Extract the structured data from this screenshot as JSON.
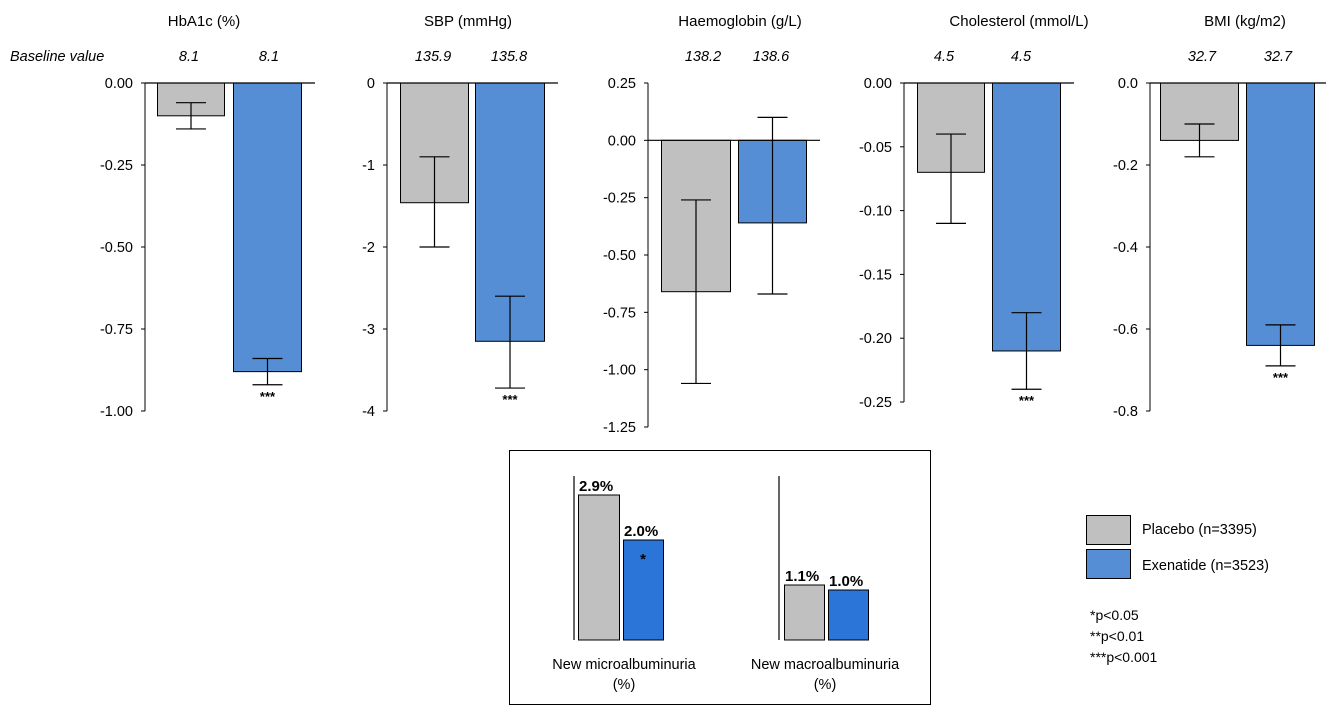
{
  "colors": {
    "placebo": "#c0c0c0",
    "exenatide_panels": "#558ed5",
    "exenatide_inset": "#2c75d8",
    "axis": "#000000"
  },
  "baseline_label": "Baseline value",
  "chart_data": [
    {
      "type": "bar",
      "title": "HbA1c (%)",
      "baseline": [
        "8.1",
        "8.1"
      ],
      "ylim": [
        -1.0,
        0.0
      ],
      "ticks": [
        0.0,
        -0.25,
        -0.5,
        -0.75,
        -1.0
      ],
      "tick_labels": [
        "0.00",
        "-0.25",
        "-0.50",
        "-0.75",
        "-1.00"
      ],
      "series": [
        {
          "name": "Placebo (n=3395)",
          "value": -0.1,
          "err_low": -0.14,
          "err_high": -0.06,
          "sig": ""
        },
        {
          "name": "Exenatide (n=3523)",
          "value": -0.88,
          "err_low": -0.92,
          "err_high": -0.84,
          "sig": "***"
        }
      ]
    },
    {
      "type": "bar",
      "title": "SBP (mmHg)",
      "baseline": [
        "135.9",
        "135.8"
      ],
      "ylim": [
        -4,
        0
      ],
      "ticks": [
        0,
        -1,
        -2,
        -3,
        -4
      ],
      "tick_labels": [
        "0",
        "-1",
        "-2",
        "-3",
        "-4"
      ],
      "series": [
        {
          "name": "Placebo (n=3395)",
          "value": -1.46,
          "err_low": -2.0,
          "err_high": -0.9,
          "sig": ""
        },
        {
          "name": "Exenatide (n=3523)",
          "value": -3.15,
          "err_low": -3.72,
          "err_high": -2.6,
          "sig": "***"
        }
      ]
    },
    {
      "type": "bar",
      "title": "Haemoglobin (g/L)",
      "baseline": [
        "138.2",
        "138.6"
      ],
      "ylim": [
        -1.25,
        0.25
      ],
      "ticks": [
        0.25,
        0.0,
        -0.25,
        -0.5,
        -0.75,
        -1.0,
        -1.25
      ],
      "tick_labels": [
        "0.25",
        "0.00",
        "-0.25",
        "-0.50",
        "-0.75",
        "-1.00",
        "-1.25"
      ],
      "series": [
        {
          "name": "Placebo (n=3395)",
          "value": -0.66,
          "err_low": -1.06,
          "err_high": -0.26,
          "sig": ""
        },
        {
          "name": "Exenatide (n=3523)",
          "value": -0.36,
          "err_low": -0.67,
          "err_high": 0.1,
          "sig": ""
        }
      ]
    },
    {
      "type": "bar",
      "title": "Cholesterol (mmol/L)",
      "baseline": [
        "4.5",
        "4.5"
      ],
      "ylim": [
        -0.25,
        0.0
      ],
      "ticks": [
        0.0,
        -0.05,
        -0.1,
        -0.15,
        -0.2,
        -0.25
      ],
      "tick_labels": [
        "0.00",
        "-0.05",
        "-0.10",
        "-0.15",
        "-0.20",
        "-0.25"
      ],
      "series": [
        {
          "name": "Placebo (n=3395)",
          "value": -0.07,
          "err_low": -0.11,
          "err_high": -0.04,
          "sig": ""
        },
        {
          "name": "Exenatide (n=3523)",
          "value": -0.21,
          "err_low": -0.24,
          "err_high": -0.18,
          "sig": "***"
        }
      ]
    },
    {
      "type": "bar",
      "title": "BMI (kg/m2)",
      "baseline": [
        "32.7",
        "32.7"
      ],
      "ylim": [
        -0.8,
        0.0
      ],
      "ticks": [
        0.0,
        -0.2,
        -0.4,
        -0.6,
        -0.8
      ],
      "tick_labels": [
        "0.0",
        "-0.2",
        "-0.4",
        "-0.6",
        "-0.8"
      ],
      "series": [
        {
          "name": "Placebo (n=3395)",
          "value": -0.14,
          "err_low": -0.18,
          "err_high": -0.1,
          "sig": ""
        },
        {
          "name": "Exenatide (n=3523)",
          "value": -0.64,
          "err_low": -0.69,
          "err_high": -0.59,
          "sig": "***"
        }
      ]
    },
    {
      "type": "bar",
      "title": "",
      "ylim": [
        0,
        3.0
      ],
      "categories": [
        "New microalbuminuria\n(%)",
        "New macroalbuminuria\n(%)"
      ],
      "series": [
        {
          "name": "Placebo (n=3395)",
          "values": [
            2.9,
            1.1
          ],
          "labels": [
            "2.9%",
            "1.1%"
          ],
          "sig": [
            "",
            ""
          ]
        },
        {
          "name": "Exenatide (n=3523)",
          "values": [
            2.0,
            1.0
          ],
          "labels": [
            "2.0%",
            "1.0%"
          ],
          "sig": [
            "*",
            ""
          ]
        }
      ]
    }
  ],
  "legend": [
    {
      "label": "Placebo (n=3395)",
      "color": "#c0c0c0"
    },
    {
      "label": "Exenatide (n=3523)",
      "color": "#558ed5"
    }
  ],
  "footnotes": [
    "*p<0.05",
    "**p<0.01",
    "***p<0.001"
  ]
}
